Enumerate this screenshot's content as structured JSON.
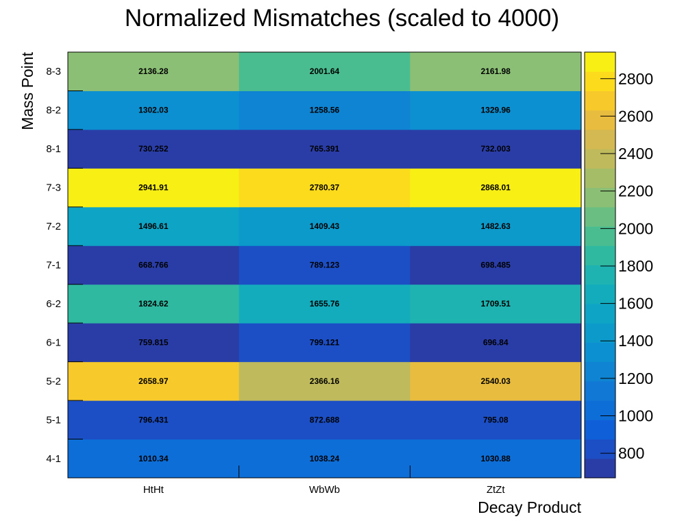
{
  "chart_data": {
    "type": "heatmap",
    "title": "Normalized Mismatches (scaled to 4000)",
    "xlabel": "Decay Product",
    "ylabel": "Mass Point",
    "x_categories": [
      "HtHt",
      "WbWb",
      "ZtZt"
    ],
    "y_categories": [
      "4-1",
      "5-1",
      "5-2",
      "6-1",
      "6-2",
      "7-1",
      "7-2",
      "7-3",
      "8-1",
      "8-2",
      "8-3"
    ],
    "values": [
      [
        1010.34,
        1038.24,
        1030.88
      ],
      [
        796.431,
        872.688,
        795.08
      ],
      [
        2658.97,
        2366.16,
        2540.03
      ],
      [
        759.815,
        799.121,
        696.84
      ],
      [
        1824.62,
        1655.76,
        1709.51
      ],
      [
        668.766,
        789.123,
        698.485
      ],
      [
        1496.61,
        1409.43,
        1482.63
      ],
      [
        2941.91,
        2780.37,
        2868.01
      ],
      [
        730.252,
        765.391,
        732.003
      ],
      [
        1302.03,
        1258.56,
        1329.96
      ],
      [
        2136.28,
        2001.64,
        2161.98
      ]
    ],
    "value_labels": [
      [
        "1010.34",
        "1038.24",
        "1030.88"
      ],
      [
        "796.431",
        "872.688",
        "795.08"
      ],
      [
        "2658.97",
        "2366.16",
        "2540.03"
      ],
      [
        "759.815",
        "799.121",
        "696.84"
      ],
      [
        "1824.62",
        "1655.76",
        "1709.51"
      ],
      [
        "668.766",
        "789.123",
        "698.485"
      ],
      [
        "1496.61",
        "1409.43",
        "1482.63"
      ],
      [
        "2941.91",
        "2780.37",
        "2868.01"
      ],
      [
        "730.252",
        "765.391",
        "732.003"
      ],
      [
        "1302.03",
        "1258.56",
        "1329.96"
      ],
      [
        "2136.28",
        "2001.64",
        "2161.98"
      ]
    ],
    "colorbar": {
      "min": 668.766,
      "max": 2941.91,
      "ticks": [
        800,
        1000,
        1200,
        1400,
        1600,
        1800,
        2000,
        2200,
        2400,
        2600,
        2800
      ],
      "tick_labels": [
        "800",
        "1000",
        "1200",
        "1400",
        "1600",
        "1800",
        "2000",
        "2200",
        "2400",
        "2600",
        "2800"
      ],
      "levels": 20,
      "palette": [
        "#2a3da7",
        "#1c4ec6",
        "#0f5fd8",
        "#0e6ed8",
        "#1178d5",
        "#0f84d3",
        "#0c90d1",
        "#0c9acb",
        "#0da4c5",
        "#12acbd",
        "#1eb3b0",
        "#30b9a1",
        "#4abd90",
        "#6bbe82",
        "#8bbf75",
        "#a6bd68",
        "#bfba5c",
        "#d4b851",
        "#e8bc3f",
        "#f8c92a",
        "#fcdb1d",
        "#f8f014"
      ]
    },
    "grid": false
  }
}
